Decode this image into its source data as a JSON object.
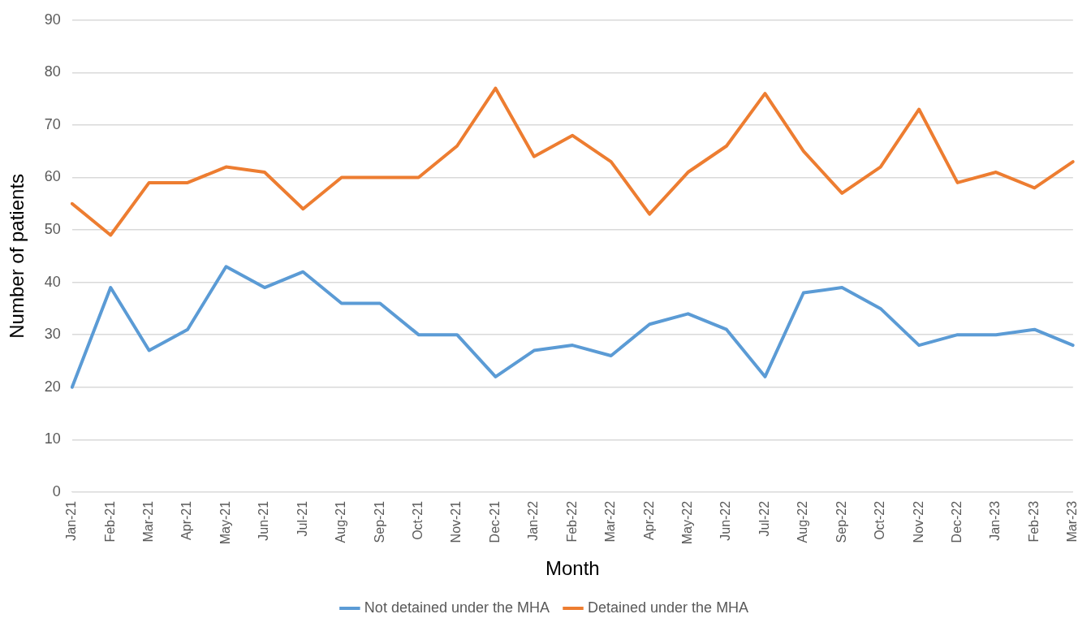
{
  "chart_data": {
    "type": "line",
    "xlabel": "Month",
    "ylabel": "Number of patients",
    "categories": [
      "Jan-21",
      "Feb-21",
      "Mar-21",
      "Apr-21",
      "May-21",
      "Jun-21",
      "Jul-21",
      "Aug-21",
      "Sep-21",
      "Oct-21",
      "Nov-21",
      "Dec-21",
      "Jan-22",
      "Feb-22",
      "Mar-22",
      "Apr-22",
      "May-22",
      "Jun-22",
      "Jul-22",
      "Aug-22",
      "Sep-22",
      "Oct-22",
      "Nov-22",
      "Dec-22",
      "Jan-23",
      "Feb-23",
      "Mar-23"
    ],
    "series": [
      {
        "name": "Not detained under the MHA",
        "color": "#5b9bd5",
        "values": [
          20,
          39,
          27,
          31,
          43,
          39,
          42,
          36,
          36,
          30,
          30,
          22,
          27,
          28,
          26,
          32,
          34,
          31,
          22,
          38,
          39,
          35,
          28,
          30,
          30,
          31,
          28
        ]
      },
      {
        "name": "Detained under the MHA",
        "color": "#ed7d31",
        "values": [
          55,
          49,
          59,
          59,
          62,
          61,
          54,
          60,
          60,
          60,
          66,
          77,
          64,
          68,
          63,
          53,
          61,
          66,
          76,
          65,
          57,
          62,
          73,
          59,
          61,
          58,
          63
        ]
      }
    ],
    "ylim": [
      0,
      90
    ],
    "yticks": [
      0,
      10,
      20,
      30,
      40,
      50,
      60,
      70,
      80,
      90
    ],
    "grid": "y",
    "legend": "bottom",
    "marker": "none",
    "line_style": "solid"
  }
}
